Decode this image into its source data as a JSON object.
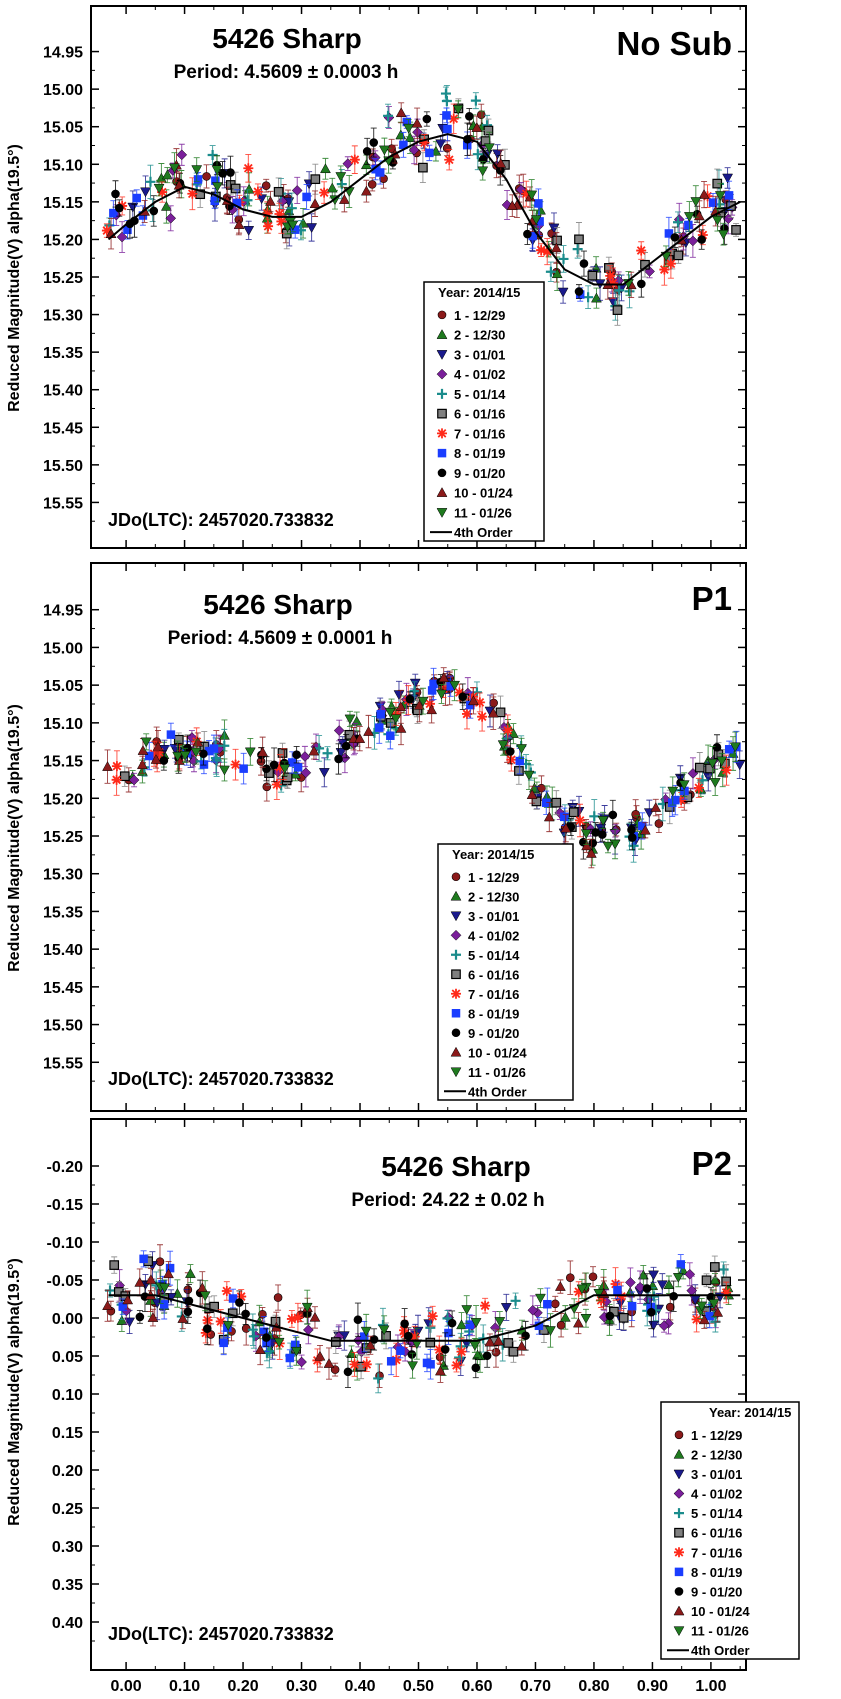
{
  "figure": {
    "ylabel": "Reduced Magnitude(V) alpha(19.5°)",
    "x_ticks": [
      "0.00",
      "0.10",
      "0.20",
      "0.30",
      "0.40",
      "0.50",
      "0.60",
      "0.70",
      "0.80",
      "0.90",
      "1.00"
    ],
    "legend": {
      "title": "Year: 2014/15",
      "entries": [
        {
          "label": "1 - 12/29",
          "color": "#8b1a1a",
          "marker": "circle"
        },
        {
          "label": "2 - 12/30",
          "color": "#1f7a1f",
          "marker": "triangle-up"
        },
        {
          "label": "3 - 01/01",
          "color": "#1a1a8c",
          "marker": "triangle-down"
        },
        {
          "label": "4 - 01/02",
          "color": "#7a1f9a",
          "marker": "diamond"
        },
        {
          "label": "5 - 01/14",
          "color": "#1a8c8c",
          "marker": "plus"
        },
        {
          "label": "6 - 01/16",
          "color": "#808080",
          "marker": "square-outlined"
        },
        {
          "label": "7 - 01/16",
          "color": "#ff2a1a",
          "marker": "asterisk"
        },
        {
          "label": "8 - 01/19",
          "color": "#1a3dff",
          "marker": "square"
        },
        {
          "label": "9 - 01/20",
          "color": "#000000",
          "marker": "circle"
        },
        {
          "label": "10 - 01/24",
          "color": "#8b1a1a",
          "marker": "triangle-up"
        },
        {
          "label": "11 - 01/26",
          "color": "#1f7a1f",
          "marker": "triangle-down"
        },
        {
          "label": "4th Order",
          "color": "#000000",
          "marker": "line"
        }
      ]
    }
  },
  "chart_data": [
    {
      "type": "scatter",
      "panel": "No Sub",
      "title": "5426 Sharp",
      "subtitle": "Period: 4.5609 ± 0.0003 h",
      "label": "No Sub",
      "annotation": "JDo(LTC): 2457020.733832",
      "xlabel": "",
      "ylabel": "Reduced Magnitude(V) alpha(19.5°)",
      "xlim": [
        -0.06,
        1.06
      ],
      "ylim": [
        15.6,
        14.9
      ],
      "y_inverted": true,
      "y_ticks": [
        "14.95",
        "15.00",
        "15.05",
        "15.10",
        "15.15",
        "15.20",
        "15.25",
        "15.30",
        "15.35",
        "15.40",
        "15.45",
        "15.50",
        "15.55"
      ],
      "legend_position": "lower-right",
      "fit": {
        "name": "4th Order",
        "x": [
          -0.03,
          0.0,
          0.05,
          0.1,
          0.15,
          0.2,
          0.25,
          0.3,
          0.35,
          0.4,
          0.45,
          0.5,
          0.55,
          0.6,
          0.65,
          0.7,
          0.75,
          0.8,
          0.85,
          0.9,
          0.95,
          1.0,
          1.05
        ],
        "y": [
          15.2,
          15.18,
          15.15,
          15.13,
          15.14,
          15.16,
          15.17,
          15.17,
          15.15,
          15.12,
          15.09,
          15.07,
          15.06,
          15.07,
          15.12,
          15.19,
          15.24,
          15.26,
          15.26,
          15.23,
          15.2,
          15.17,
          15.15
        ]
      },
      "band": {
        "x": [
          -0.03,
          0.0,
          0.05,
          0.1,
          0.15,
          0.2,
          0.25,
          0.3,
          0.35,
          0.4,
          0.45,
          0.5,
          0.55,
          0.6,
          0.65,
          0.7,
          0.75,
          0.8,
          0.85,
          0.9,
          0.95,
          1.0,
          1.05
        ],
        "y": [
          15.19,
          15.17,
          15.14,
          15.12,
          15.13,
          15.15,
          15.16,
          15.16,
          15.14,
          15.11,
          15.08,
          15.06,
          15.05,
          15.06,
          15.11,
          15.18,
          15.23,
          15.26,
          15.27,
          15.24,
          15.2,
          15.16,
          15.14
        ],
        "spread": 0.05,
        "density_per_series": 26
      }
    },
    {
      "type": "scatter",
      "panel": "P1",
      "title": "5426 Sharp",
      "subtitle": "Period: 4.5609 ± 0.0001 h",
      "label": "P1",
      "annotation": "JDo(LTC): 2457020.733832",
      "xlabel": "",
      "ylabel": "Reduced Magnitude(V) alpha(19.5°)",
      "xlim": [
        -0.06,
        1.06
      ],
      "ylim": [
        15.6,
        14.9
      ],
      "y_inverted": true,
      "y_ticks": [
        "14.95",
        "15.00",
        "15.05",
        "15.10",
        "15.15",
        "15.20",
        "15.25",
        "15.30",
        "15.35",
        "15.40",
        "15.45",
        "15.50",
        "15.55"
      ],
      "legend_position": "lower-right",
      "fit": null,
      "band": {
        "x": [
          -0.03,
          0.0,
          0.05,
          0.1,
          0.15,
          0.2,
          0.25,
          0.3,
          0.35,
          0.4,
          0.45,
          0.5,
          0.55,
          0.6,
          0.65,
          0.7,
          0.75,
          0.8,
          0.85,
          0.9,
          0.95,
          1.0,
          1.05
        ],
        "y": [
          15.18,
          15.17,
          15.14,
          15.13,
          15.14,
          15.15,
          15.16,
          15.16,
          15.14,
          15.11,
          15.09,
          15.07,
          15.05,
          15.07,
          15.12,
          15.19,
          15.23,
          15.25,
          15.25,
          15.22,
          15.19,
          15.16,
          15.14
        ],
        "spread": 0.03,
        "density_per_series": 26
      }
    },
    {
      "type": "scatter",
      "panel": "P2",
      "title": "5426 Sharp",
      "subtitle": "Period: 24.22 ± 0.02 h",
      "label": "P2",
      "annotation": "JDo(LTC): 2457020.733832",
      "xlabel": "",
      "ylabel": "Reduced Magnitude(V) alpha(19.5°)",
      "xlim": [
        -0.06,
        1.06
      ],
      "ylim": [
        0.45,
        -0.25
      ],
      "y_inverted": true,
      "y_ticks": [
        "-0.20",
        "-0.15",
        "-0.10",
        "-0.05",
        "0.00",
        "0.05",
        "0.10",
        "0.15",
        "0.20",
        "0.25",
        "0.30",
        "0.35",
        "0.40"
      ],
      "legend_position": "lower-right",
      "fit": {
        "name": "4th Order",
        "x": [
          -0.03,
          0.0,
          0.05,
          0.1,
          0.15,
          0.2,
          0.25,
          0.3,
          0.35,
          0.4,
          0.45,
          0.5,
          0.55,
          0.6,
          0.65,
          0.7,
          0.75,
          0.8,
          0.85,
          0.9,
          0.95,
          1.0,
          1.05
        ],
        "y": [
          -0.03,
          -0.03,
          -0.03,
          -0.02,
          -0.01,
          0.0,
          0.01,
          0.02,
          0.03,
          0.03,
          0.03,
          0.03,
          0.03,
          0.03,
          0.02,
          0.01,
          -0.01,
          -0.03,
          -0.03,
          -0.03,
          -0.03,
          -0.03,
          -0.03
        ]
      },
      "band": {
        "x": [
          -0.03,
          0.0,
          0.05,
          0.1,
          0.15,
          0.2,
          0.25,
          0.3,
          0.35,
          0.4,
          0.45,
          0.5,
          0.55,
          0.6,
          0.65,
          0.7,
          0.75,
          0.8,
          0.85,
          0.9,
          0.95,
          1.0,
          1.05
        ],
        "y": [
          -0.03,
          -0.03,
          -0.04,
          -0.03,
          -0.01,
          0.0,
          0.01,
          0.02,
          0.04,
          0.04,
          0.04,
          0.03,
          0.03,
          0.03,
          0.02,
          0.01,
          -0.02,
          -0.03,
          -0.03,
          -0.03,
          -0.03,
          -0.03,
          -0.03
        ],
        "spread": 0.05,
        "density_per_series": 26
      }
    }
  ]
}
